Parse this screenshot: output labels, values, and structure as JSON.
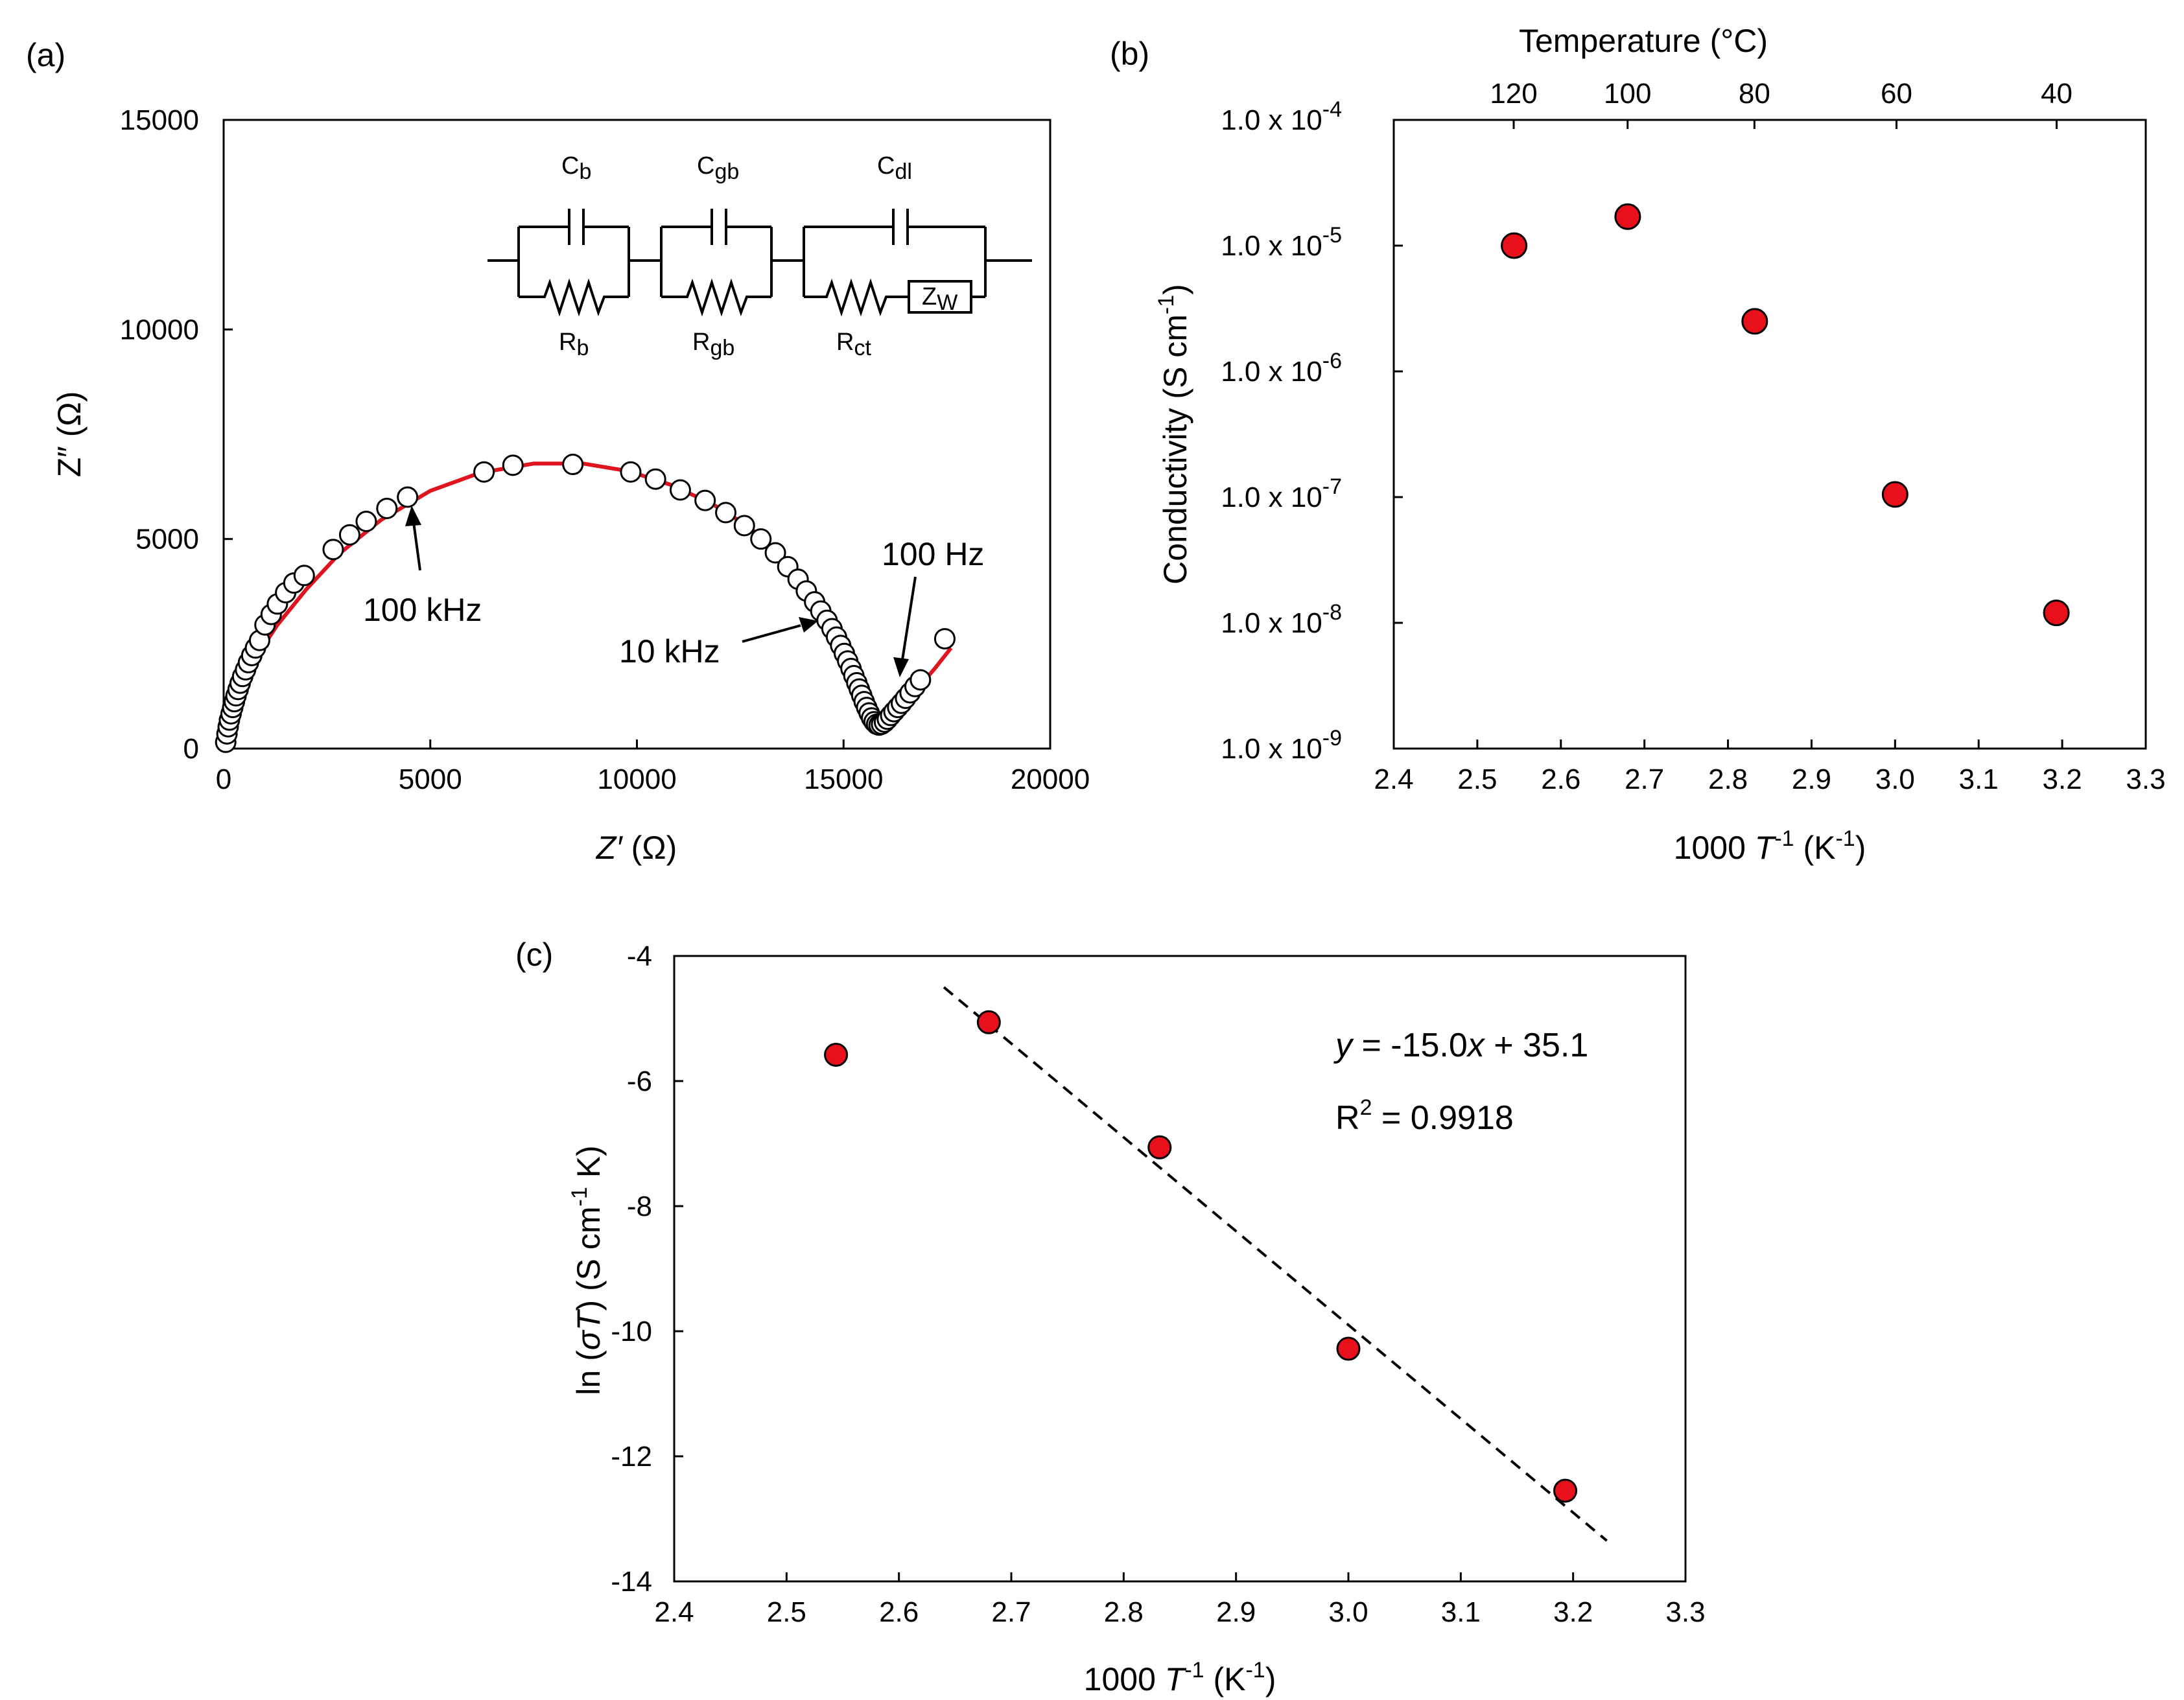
{
  "panels": {
    "a": {
      "label": "(a)"
    },
    "b": {
      "label": "(b)"
    },
    "c": {
      "label": "(c)"
    }
  },
  "circuit": {
    "cb": "C",
    "cb_sub": "b",
    "cgb": "C",
    "cgb_sub": "gb",
    "cdl": "C",
    "cdl_sub": "dl",
    "rb": "R",
    "rb_sub": "b",
    "rgb": "R",
    "rgb_sub": "gb",
    "rct": "R",
    "rct_sub": "ct",
    "zw": "Z",
    "zw_sub": "W"
  },
  "annotations": {
    "a_100khz": "100 kHz",
    "a_10khz": "10 kHz",
    "a_100hz": "100 Hz",
    "c_eq_y": "y",
    "c_eq_mid": " = -15.0",
    "c_eq_x": "x",
    "c_eq_end": " + 35.1",
    "c_r2_r": "R",
    "c_r2_sup": "2",
    "c_r2_val": " = 0.9918"
  },
  "colors": {
    "marker_fill": "#e8101a",
    "fit_line": "#e0141e",
    "open_marker_fill": "#ffffff",
    "ink": "#000000"
  },
  "axis_titles": {
    "a_y": "Z″ (Ω)",
    "a_x_italic": "Z′",
    "a_x_rest": " (Ω)",
    "b_y_main": "Conductivity (S cm",
    "b_y_sup": "-1",
    "b_y_end": ")",
    "b_top": "Temperature (°C)",
    "bc_x_a": "1000 ",
    "bc_x_T": "T",
    "bc_x_sup1": "-1",
    "bc_x_mid": " (K",
    "bc_x_sup2": "-1",
    "bc_x_end": ")",
    "c_y_a": "ln (",
    "c_y_sig": "σT",
    "c_y_b": ") (S cm",
    "c_y_sup": "-1",
    "c_y_c": " K)"
  },
  "chart_data": [
    {
      "id": "a",
      "type": "scatter",
      "xlabel": "Z′ (Ω)",
      "ylabel": "Z″ (Ω)",
      "xlim": [
        0,
        20000
      ],
      "ylim": [
        0,
        15000
      ],
      "xticks": [
        "0",
        "5000",
        "10000",
        "15000",
        "20000"
      ],
      "yticks": [
        "0",
        "5000",
        "10000",
        "15000"
      ],
      "grid": false,
      "series": [
        {
          "marker": "open-circle",
          "x": [
            50,
            80,
            110,
            140,
            180,
            220,
            260,
            300,
            350,
            400,
            460,
            530,
            600,
            680,
            770,
            870,
            1000,
            1150,
            1300,
            1500,
            1700,
            1950,
            2650,
            3050,
            3450,
            3950,
            4450,
            6300,
            7000,
            8450,
            9850,
            10450,
            11050,
            11650,
            12150,
            12600,
            13000,
            13350,
            13650,
            13900,
            14100,
            14300,
            14450,
            14600,
            14720,
            14830,
            14930,
            15020,
            15100,
            15180,
            15250,
            15320,
            15380,
            15440,
            15500,
            15560,
            15620,
            15680,
            15740,
            15800,
            15860,
            15920,
            15990,
            16060,
            16140,
            16220,
            16310,
            16400,
            16500,
            16610,
            16730,
            16860,
            17450
          ],
          "y": [
            150,
            350,
            520,
            680,
            830,
            980,
            1120,
            1260,
            1410,
            1560,
            1720,
            1880,
            2050,
            2220,
            2400,
            2580,
            2950,
            3200,
            3450,
            3720,
            3950,
            4130,
            4750,
            5100,
            5420,
            5730,
            6000,
            6600,
            6760,
            6780,
            6600,
            6430,
            6170,
            5920,
            5630,
            5320,
            5000,
            4670,
            4340,
            4040,
            3760,
            3500,
            3280,
            3060,
            2860,
            2660,
            2460,
            2270,
            2090,
            1910,
            1740,
            1570,
            1420,
            1270,
            1120,
            980,
            850,
            730,
            640,
            580,
            560,
            580,
            630,
            700,
            790,
            880,
            980,
            1080,
            1200,
            1330,
            1480,
            1640,
            2620
          ]
        },
        {
          "type": "line",
          "marker": "none",
          "x": [
            0,
            150,
            400,
            800,
            1300,
            2000,
            2800,
            3800,
            5000,
            6200,
            7500,
            8700,
            9800,
            10800,
            11800,
            12700,
            13500,
            14200,
            14700,
            15100,
            15400,
            15600,
            15750,
            15900,
            16100,
            16400,
            16800,
            17200,
            17600
          ],
          "y": [
            0,
            700,
            1400,
            2200,
            2950,
            3800,
            4650,
            5450,
            6150,
            6580,
            6800,
            6800,
            6620,
            6300,
            5850,
            5300,
            4600,
            3800,
            3050,
            2300,
            1600,
            1000,
            500,
            450,
            650,
            1000,
            1450,
            1900,
            2400
          ]
        }
      ]
    },
    {
      "id": "b",
      "type": "scatter",
      "xlabel": "1000 T-1 (K-1)",
      "ylabel": "Conductivity (S cm-1)",
      "xlim": [
        2.4,
        3.3
      ],
      "ylim": [
        1e-09,
        0.0001
      ],
      "yscale": "log",
      "xticks": [
        "2.4",
        "2.5",
        "2.6",
        "2.7",
        "2.8",
        "2.9",
        "3.0",
        "3.1",
        "3.2",
        "3.3"
      ],
      "yticks": [
        "1.0 x 10",
        "1.0 x 10",
        "1.0 x 10",
        "1.0 x 10",
        "1.0 x 10",
        "1.0 x 10"
      ],
      "ytick_exponents": [
        "-9",
        "-8",
        "-7",
        "-6",
        "-5",
        "-4"
      ],
      "top_axis": {
        "title": "Temperature (°C)",
        "ticks": [
          "120",
          "100",
          "80",
          "60",
          "40"
        ],
        "celsius": [
          120,
          100,
          80,
          60,
          40
        ]
      },
      "grid": false,
      "series": [
        {
          "marker": "filled-circle",
          "x": [
            2.544,
            2.68,
            2.832,
            3.0,
            3.193
          ],
          "y": [
            1e-05,
            1.7e-05,
            2.5e-06,
            1.05e-07,
            1.2e-08
          ]
        }
      ]
    },
    {
      "id": "c",
      "type": "scatter",
      "xlabel": "1000 T-1 (K-1)",
      "ylabel": "ln (σT) (S cm-1 K)",
      "xlim": [
        2.4,
        3.3
      ],
      "ylim": [
        -14,
        -4
      ],
      "xticks": [
        "2.4",
        "2.5",
        "2.6",
        "2.7",
        "2.8",
        "2.9",
        "3.0",
        "3.1",
        "3.2",
        "3.3"
      ],
      "yticks": [
        "-14",
        "-12",
        "-10",
        "-8",
        "-6",
        "-4"
      ],
      "grid": false,
      "series": [
        {
          "marker": "filled-circle",
          "x": [
            2.544,
            2.68,
            2.832,
            3.0,
            3.193
          ],
          "y": [
            -5.58,
            -5.06,
            -7.06,
            -10.28,
            -12.55
          ]
        },
        {
          "type": "line",
          "style": "dashed",
          "x": [
            2.64,
            3.23
          ],
          "y": [
            -4.5,
            -13.35
          ]
        }
      ],
      "annotation": "y = -15.0x + 35.1; R2 = 0.9918"
    }
  ]
}
